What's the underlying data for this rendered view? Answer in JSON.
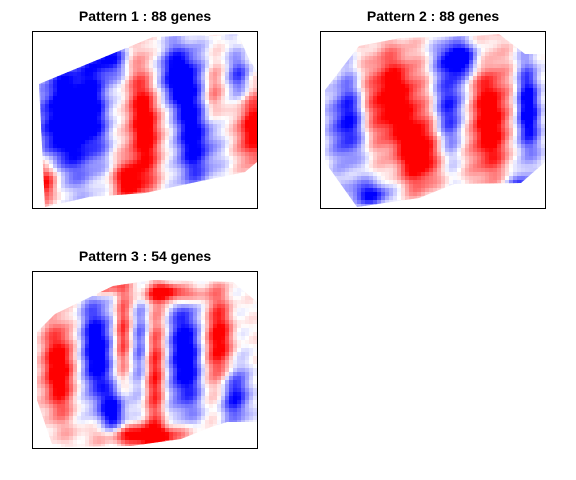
{
  "chart_data": [
    {
      "type": "heatmap",
      "title": "Pattern 1 : 88 genes",
      "colors": {
        "positive": "#ff0000",
        "negative": "#0000ff",
        "neutral": "#ffffff"
      },
      "blobs": [
        {
          "x": 0.12,
          "y": 0.5,
          "rx": 0.1,
          "ry": 0.36,
          "v": -1.0
        },
        {
          "x": 0.25,
          "y": 0.45,
          "rx": 0.1,
          "ry": 0.38,
          "v": -0.9
        },
        {
          "x": 0.5,
          "y": 0.5,
          "rx": 0.09,
          "ry": 0.42,
          "v": 1.0
        },
        {
          "x": 0.42,
          "y": 0.85,
          "rx": 0.08,
          "ry": 0.12,
          "v": 0.8
        },
        {
          "x": 0.64,
          "y": 0.25,
          "rx": 0.12,
          "ry": 0.2,
          "v": -1.0
        },
        {
          "x": 0.72,
          "y": 0.6,
          "rx": 0.1,
          "ry": 0.32,
          "v": -0.9
        },
        {
          "x": 0.8,
          "y": 0.35,
          "rx": 0.05,
          "ry": 0.2,
          "v": 0.7
        },
        {
          "x": 0.98,
          "y": 0.55,
          "rx": 0.07,
          "ry": 0.22,
          "v": 1.0
        },
        {
          "x": 0.06,
          "y": 0.85,
          "rx": 0.06,
          "ry": 0.14,
          "v": 1.0
        },
        {
          "x": 0.35,
          "y": 0.15,
          "rx": 0.08,
          "ry": 0.12,
          "v": -0.7
        },
        {
          "x": 0.92,
          "y": 0.25,
          "rx": 0.06,
          "ry": 0.14,
          "v": -0.6
        }
      ]
    },
    {
      "type": "heatmap",
      "title": "Pattern 2 : 88 genes",
      "colors": {
        "positive": "#ff0000",
        "negative": "#0000ff",
        "neutral": "#ffffff"
      },
      "blobs": [
        {
          "x": 0.32,
          "y": 0.38,
          "rx": 0.14,
          "ry": 0.3,
          "v": 1.0
        },
        {
          "x": 0.44,
          "y": 0.7,
          "rx": 0.1,
          "ry": 0.22,
          "v": 1.0
        },
        {
          "x": 0.75,
          "y": 0.5,
          "rx": 0.11,
          "ry": 0.38,
          "v": 1.0
        },
        {
          "x": 0.58,
          "y": 0.42,
          "rx": 0.08,
          "ry": 0.3,
          "v": -0.8
        },
        {
          "x": 0.62,
          "y": 0.15,
          "rx": 0.1,
          "ry": 0.1,
          "v": -1.0
        },
        {
          "x": 0.12,
          "y": 0.5,
          "rx": 0.08,
          "ry": 0.28,
          "v": -0.9
        },
        {
          "x": 0.92,
          "y": 0.45,
          "rx": 0.06,
          "ry": 0.3,
          "v": -1.0
        },
        {
          "x": 0.22,
          "y": 0.92,
          "rx": 0.1,
          "ry": 0.08,
          "v": -0.8
        },
        {
          "x": 0.88,
          "y": 0.88,
          "rx": 0.08,
          "ry": 0.08,
          "v": -0.6
        }
      ]
    },
    {
      "type": "heatmap",
      "title": "Pattern 3 : 54 genes",
      "colors": {
        "positive": "#ff0000",
        "negative": "#0000ff",
        "neutral": "#ffffff"
      },
      "blobs": [
        {
          "x": 0.28,
          "y": 0.45,
          "rx": 0.09,
          "ry": 0.32,
          "v": -1.0
        },
        {
          "x": 0.36,
          "y": 0.8,
          "rx": 0.06,
          "ry": 0.15,
          "v": -0.9
        },
        {
          "x": 0.48,
          "y": 0.4,
          "rx": 0.04,
          "ry": 0.3,
          "v": -0.6
        },
        {
          "x": 0.68,
          "y": 0.48,
          "rx": 0.1,
          "ry": 0.36,
          "v": -1.0
        },
        {
          "x": 0.12,
          "y": 0.55,
          "rx": 0.09,
          "ry": 0.3,
          "v": 1.0
        },
        {
          "x": 0.4,
          "y": 0.35,
          "rx": 0.04,
          "ry": 0.3,
          "v": 0.8
        },
        {
          "x": 0.55,
          "y": 0.55,
          "rx": 0.05,
          "ry": 0.4,
          "v": 0.9
        },
        {
          "x": 0.5,
          "y": 0.93,
          "rx": 0.22,
          "ry": 0.07,
          "v": 1.0
        },
        {
          "x": 0.82,
          "y": 0.4,
          "rx": 0.07,
          "ry": 0.3,
          "v": 1.0
        },
        {
          "x": 0.62,
          "y": 0.12,
          "rx": 0.14,
          "ry": 0.06,
          "v": 1.0
        },
        {
          "x": 0.9,
          "y": 0.7,
          "rx": 0.06,
          "ry": 0.18,
          "v": -0.9
        },
        {
          "x": 0.3,
          "y": 0.08,
          "rx": 0.1,
          "ry": 0.05,
          "v": 0.7
        }
      ]
    }
  ]
}
